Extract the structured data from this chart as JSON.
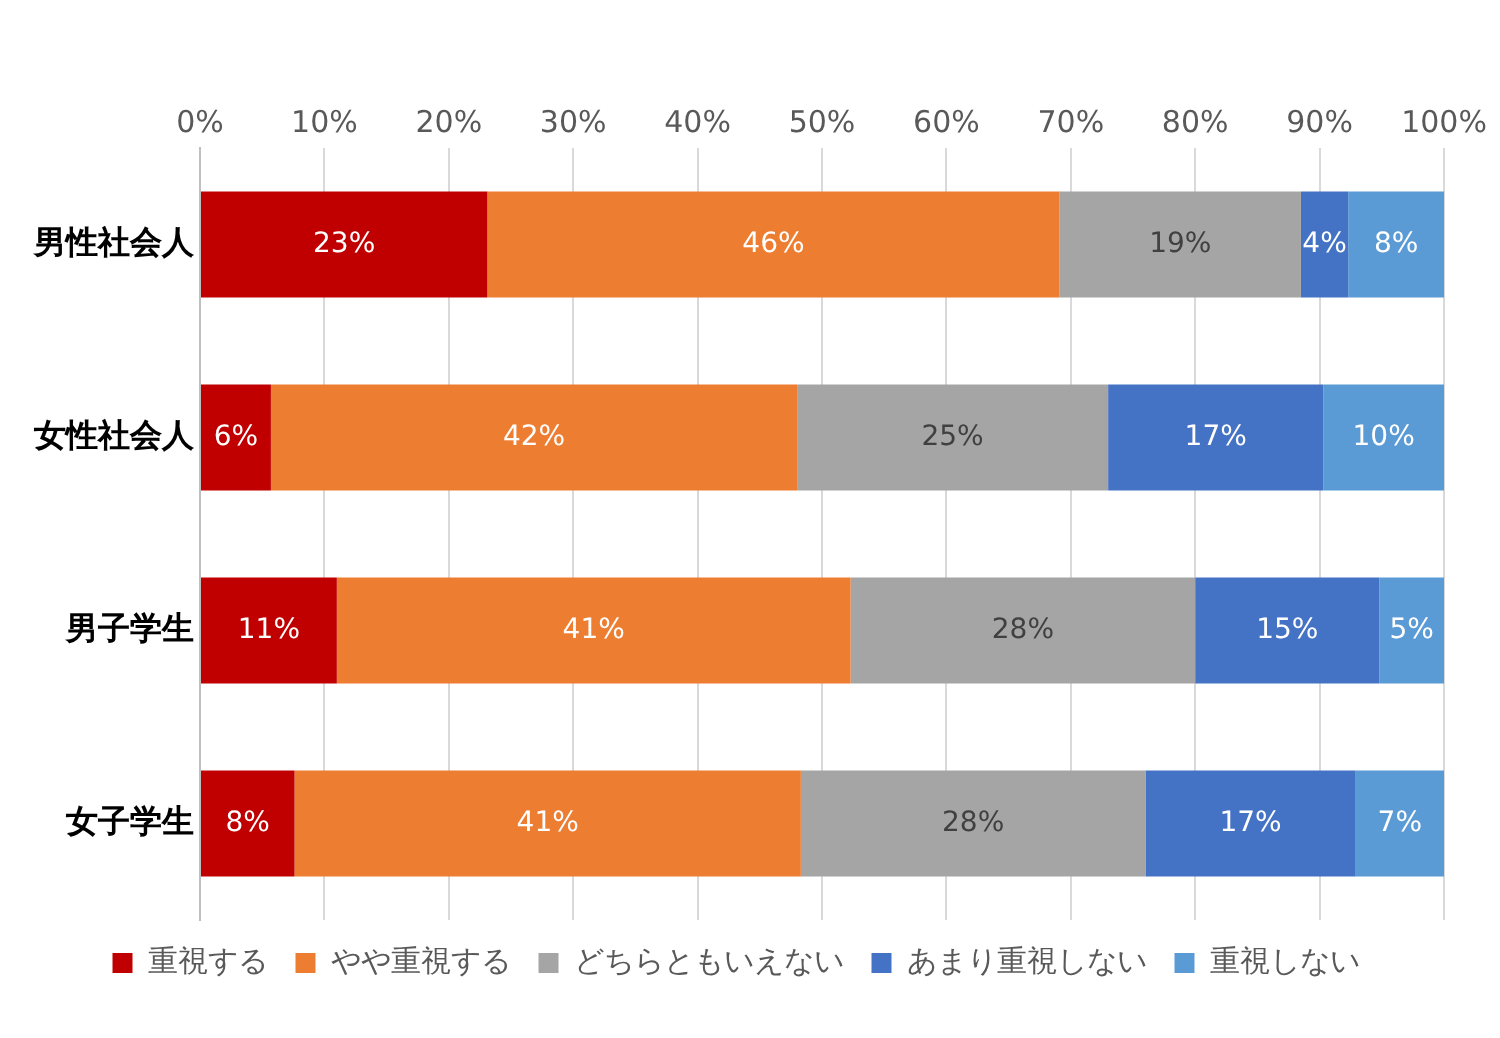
{
  "chart_data": {
    "type": "bar",
    "orientation": "horizontal",
    "stacked": true,
    "categories": [
      "男性社会人",
      "女性社会人",
      "男子学生",
      "女子学生"
    ],
    "xlim": [
      0,
      100
    ],
    "xticks": [
      {
        "value": 0,
        "label": "0%"
      },
      {
        "value": 10,
        "label": "10%"
      },
      {
        "value": 20,
        "label": "20%"
      },
      {
        "value": 30,
        "label": "30%"
      },
      {
        "value": 40,
        "label": "40%"
      },
      {
        "value": 50,
        "label": "50%"
      },
      {
        "value": 60,
        "label": "60%"
      },
      {
        "value": 70,
        "label": "70%"
      },
      {
        "value": 80,
        "label": "80%"
      },
      {
        "value": 90,
        "label": "90%"
      },
      {
        "value": 100,
        "label": "100%"
      }
    ],
    "grid": "x",
    "legend": "bottom",
    "series": [
      {
        "name": "重視する",
        "color": "#c00000",
        "values": [
          23.1,
          5.7,
          11,
          7.6
        ],
        "value_labels": [
          "23%",
          "6%",
          "11%",
          "8%"
        ]
      },
      {
        "name": "やや重視する",
        "color": "#ed7d31",
        "values": [
          46,
          42.3,
          41.3,
          40.7
        ],
        "value_labels": [
          "46%",
          "42%",
          "41%",
          "41%"
        ]
      },
      {
        "name": "どちらともいえない",
        "color": "#a5a5a5",
        "values": [
          19.4,
          25,
          27.7,
          27.7
        ],
        "value_labels": [
          "19%",
          "25%",
          "28%",
          "28%"
        ]
      },
      {
        "name": "あまり重視しない",
        "color": "#4472c4",
        "values": [
          3.8,
          17.3,
          14.8,
          16.9
        ],
        "value_labels": [
          "4%",
          "17%",
          "15%",
          "17%"
        ]
      },
      {
        "name": "重視しない",
        "color": "#5b9bd5",
        "values": [
          7.7,
          9.7,
          5.2,
          7.1
        ],
        "value_labels": [
          "8%",
          "10%",
          "5%",
          "7%"
        ]
      }
    ]
  }
}
